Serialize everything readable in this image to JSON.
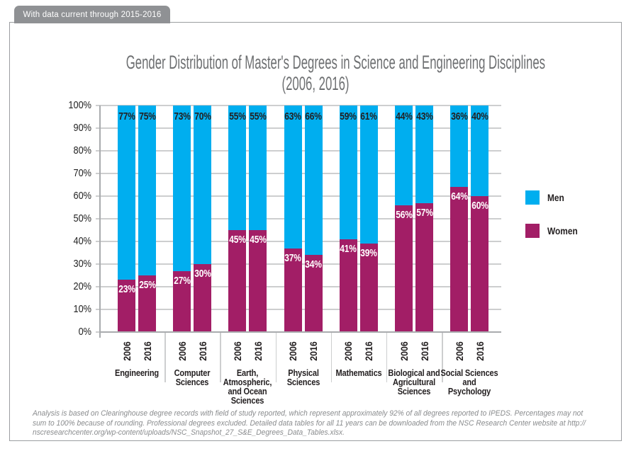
{
  "header_tab": {
    "label": "With data current through 2015-2016"
  },
  "title": {
    "line1": "Gender Distribution of Master's Degrees in Science and Engineering Disciplines",
    "line2": "(2006, 2016)"
  },
  "legend": {
    "items": [
      {
        "label": "Men",
        "color": "#00AEEF"
      },
      {
        "label": "Women",
        "color": "#A21E66"
      }
    ]
  },
  "footnote_lines": [
    "Analysis is based on Clearinghouse degree records with field of study reported, which represent approximately 92% of all degrees reported to IPEDS. Percentages may not",
    "sum to 100% because of rounding. Professional degrees excluded. Detailed data tables for all 11 years can be downloaded from the NSC Research Center website at http://",
    "nscresearchcenter.org/wp-content/uploads/NSC_Snapshot_27_S&E_Degrees_Data_Tables.xlsx."
  ],
  "chart_data": {
    "type": "bar",
    "stacked": true,
    "title": "Gender Distribution of Master's Degrees in Science and Engineering Disciplines (2006, 2016)",
    "ylim": [
      0,
      100
    ],
    "grid": true,
    "legend_position": "right",
    "y_tick_labels": [
      "0%",
      "10%",
      "20%",
      "30%",
      "40%",
      "50%",
      "60%",
      "70%",
      "80%",
      "90%",
      "100%"
    ],
    "years": [
      "2006",
      "2016"
    ],
    "categories": [
      "Engineering",
      "Computer Sciences",
      "Earth, Atmospheric, and Ocean Sciences",
      "Physical Sciences",
      "Mathematics",
      "Biological and Agricultural Sciences",
      "Social Sciences and Psychology"
    ],
    "series": [
      {
        "name": "Men",
        "color": "#00AEEF",
        "values": {
          "2006": [
            77,
            73,
            55,
            63,
            59,
            44,
            36
          ],
          "2016": [
            75,
            70,
            55,
            66,
            61,
            43,
            40
          ]
        }
      },
      {
        "name": "Women",
        "color": "#A21E66",
        "values": {
          "2006": [
            23,
            27,
            45,
            37,
            41,
            56,
            64
          ],
          "2016": [
            25,
            30,
            45,
            34,
            39,
            57,
            60
          ]
        }
      }
    ],
    "bar_label_format": "{value}%"
  }
}
